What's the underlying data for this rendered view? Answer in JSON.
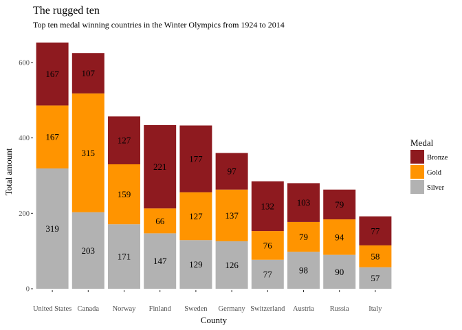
{
  "chart_data": {
    "type": "bar",
    "stacked": true,
    "title": "The rugged ten",
    "subtitle": "Top ten medal winning countries in the Winter Olympics from 1924 to 2014",
    "xlabel": "County",
    "ylabel": "Total amount",
    "ylim": [
      0,
      660
    ],
    "y_ticks": [
      0,
      200,
      400,
      600
    ],
    "grid": false,
    "legend_title": "Medal",
    "legend_position": "right",
    "categories": [
      "United States",
      "Canada",
      "Norway",
      "Finland",
      "Sweden",
      "Germany",
      "Switzerland",
      "Austria",
      "Russia",
      "Italy"
    ],
    "series": [
      {
        "name": "Silver",
        "color": "#b2b2b2",
        "values": [
          319,
          203,
          171,
          147,
          129,
          126,
          77,
          98,
          90,
          57
        ]
      },
      {
        "name": "Gold",
        "color": "#ff9400",
        "values": [
          167,
          315,
          159,
          66,
          127,
          137,
          76,
          79,
          94,
          58
        ]
      },
      {
        "name": "Bronze",
        "color": "#8e1a1f",
        "values": [
          167,
          107,
          127,
          221,
          177,
          97,
          132,
          103,
          79,
          77
        ]
      }
    ],
    "legend_order": [
      "Bronze",
      "Gold",
      "Silver"
    ]
  }
}
